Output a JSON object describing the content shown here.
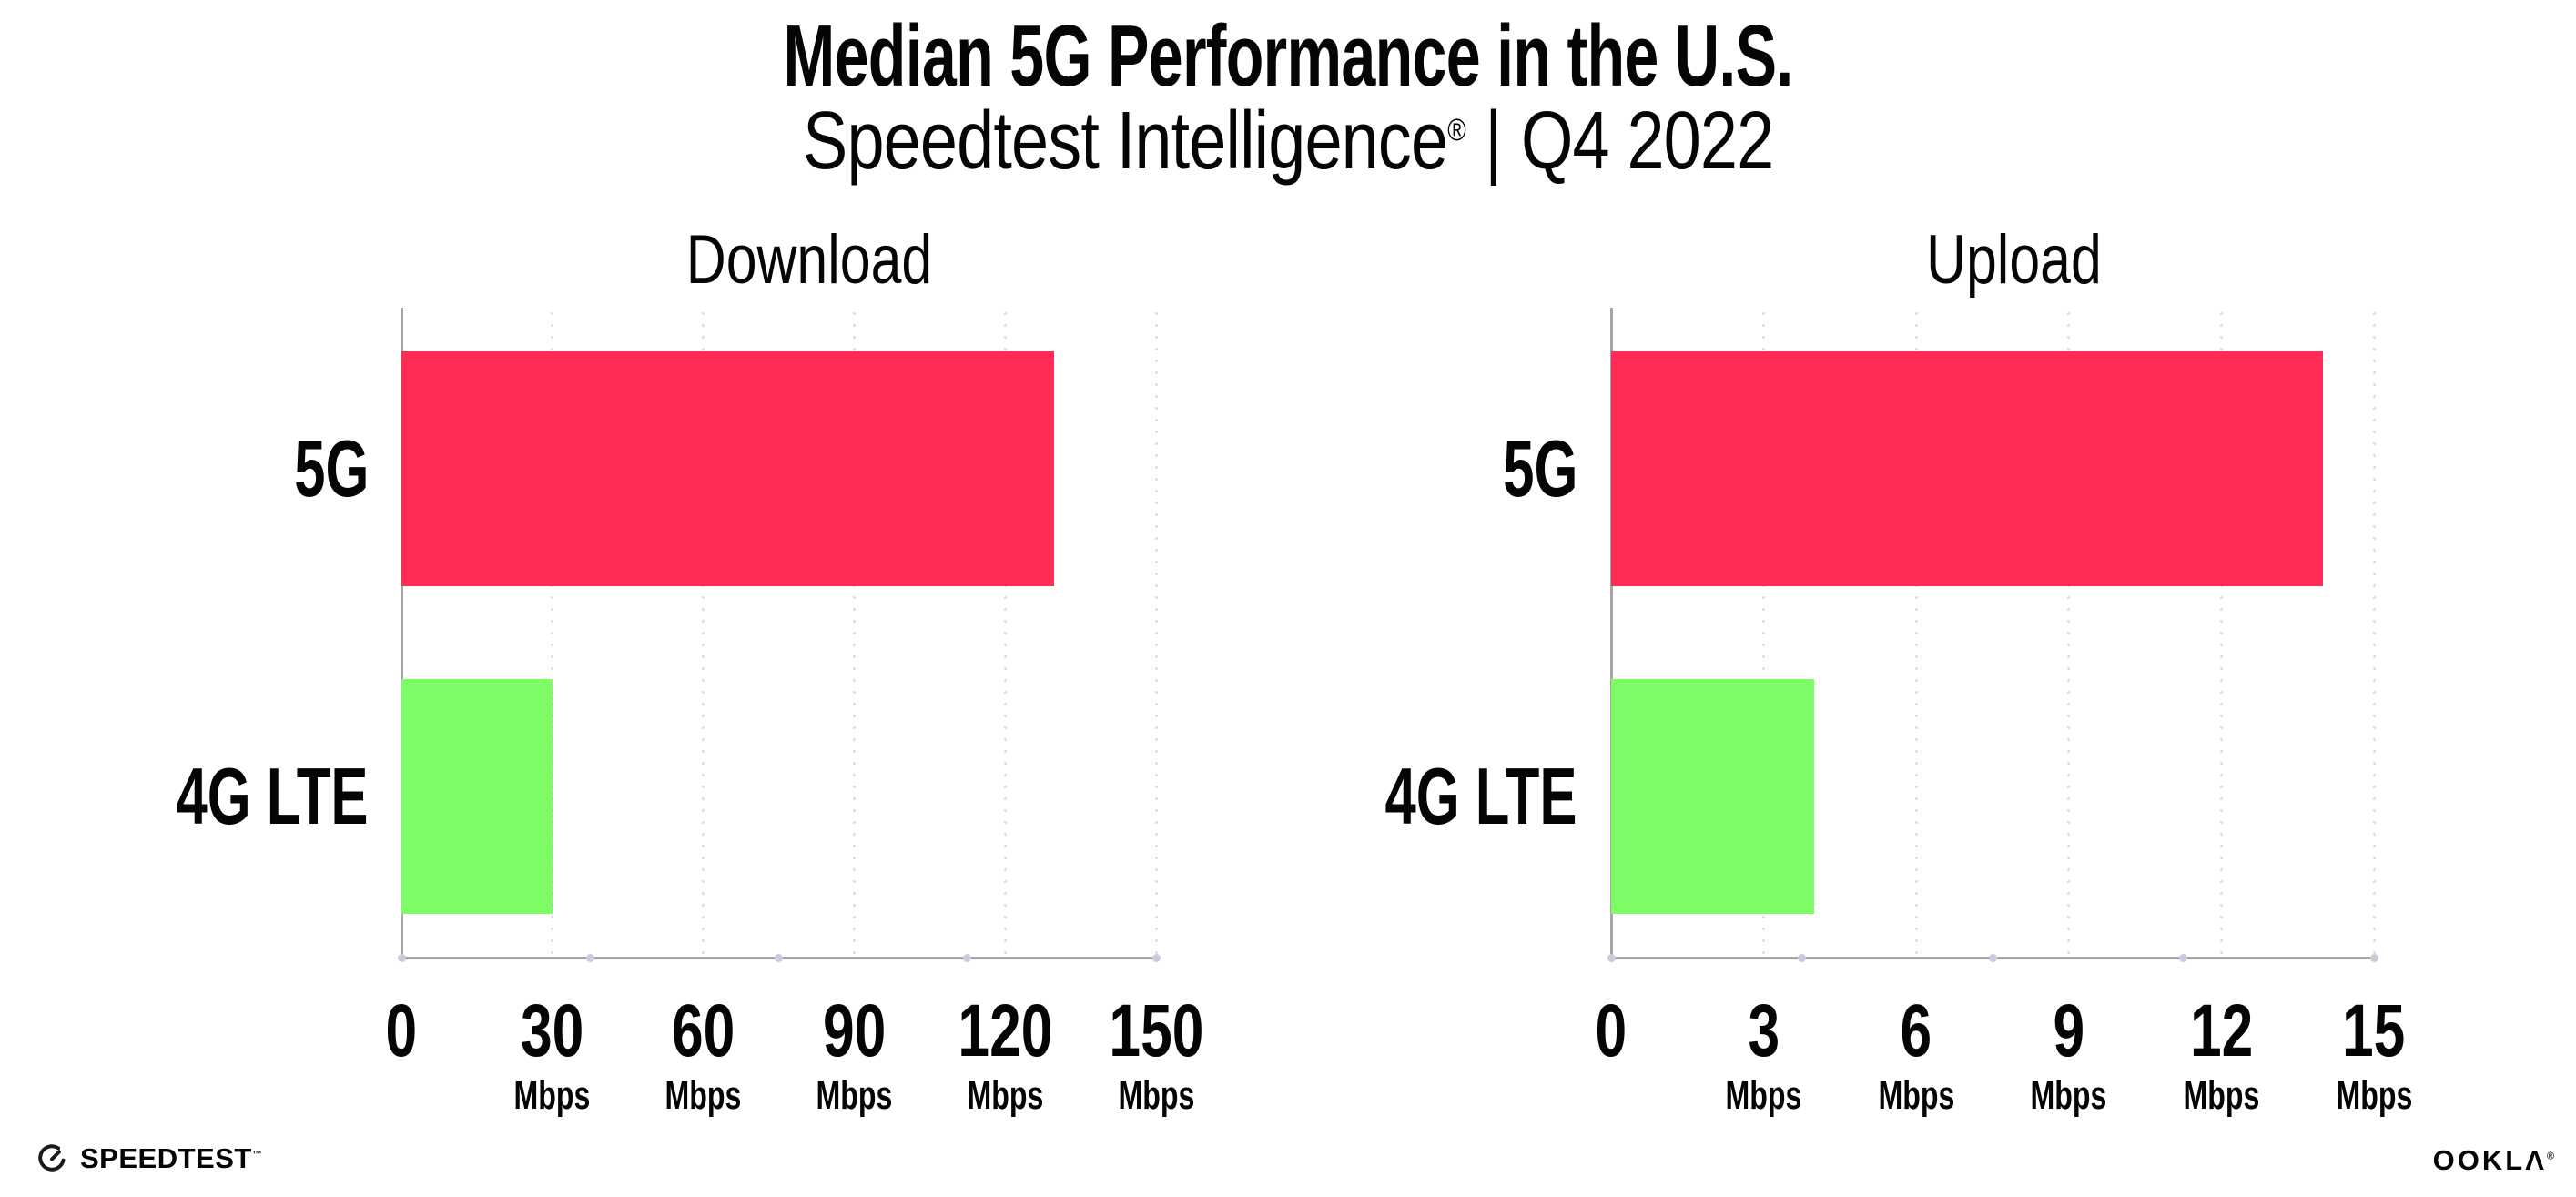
{
  "header": {
    "title": "Median 5G Performance in the U.S.",
    "subtitle_brand": "Speedtest Intelligence",
    "subtitle_reg": "®",
    "subtitle_divider": "|",
    "subtitle_period": "Q4 2022"
  },
  "chart_data": [
    {
      "type": "bar",
      "orientation": "horizontal",
      "title": "Download",
      "categories": [
        "5G",
        "4G LTE"
      ],
      "values": [
        129.8,
        30.0
      ],
      "unit": "Mbps",
      "xlim": [
        0,
        150
      ],
      "xticks": [
        0,
        30,
        60,
        90,
        120,
        150
      ],
      "grid": "dotted-vertical-at-ticks",
      "legend": "none"
    },
    {
      "type": "bar",
      "orientation": "horizontal",
      "title": "Upload",
      "categories": [
        "5G",
        "4G LTE"
      ],
      "values": [
        14.0,
        4.0
      ],
      "unit": "Mbps",
      "xlim": [
        0,
        15
      ],
      "xticks": [
        0,
        3,
        6,
        9,
        12,
        15
      ],
      "grid": "dotted-vertical-at-ticks",
      "legend": "none"
    }
  ],
  "colors": {
    "bar_5g": "#FF2D55",
    "bar_4g_lte": "#7EFC66",
    "gridline": "#DCDDE9",
    "axis_line": "#A6A6A6",
    "axis_dot": "#C7CCDA",
    "text": "#050505"
  },
  "footer": {
    "speedtest_label": "SPEEDTEST",
    "speedtest_tm": "™",
    "ookla_label": "OOKLΛ",
    "ookla_reg": "®"
  }
}
